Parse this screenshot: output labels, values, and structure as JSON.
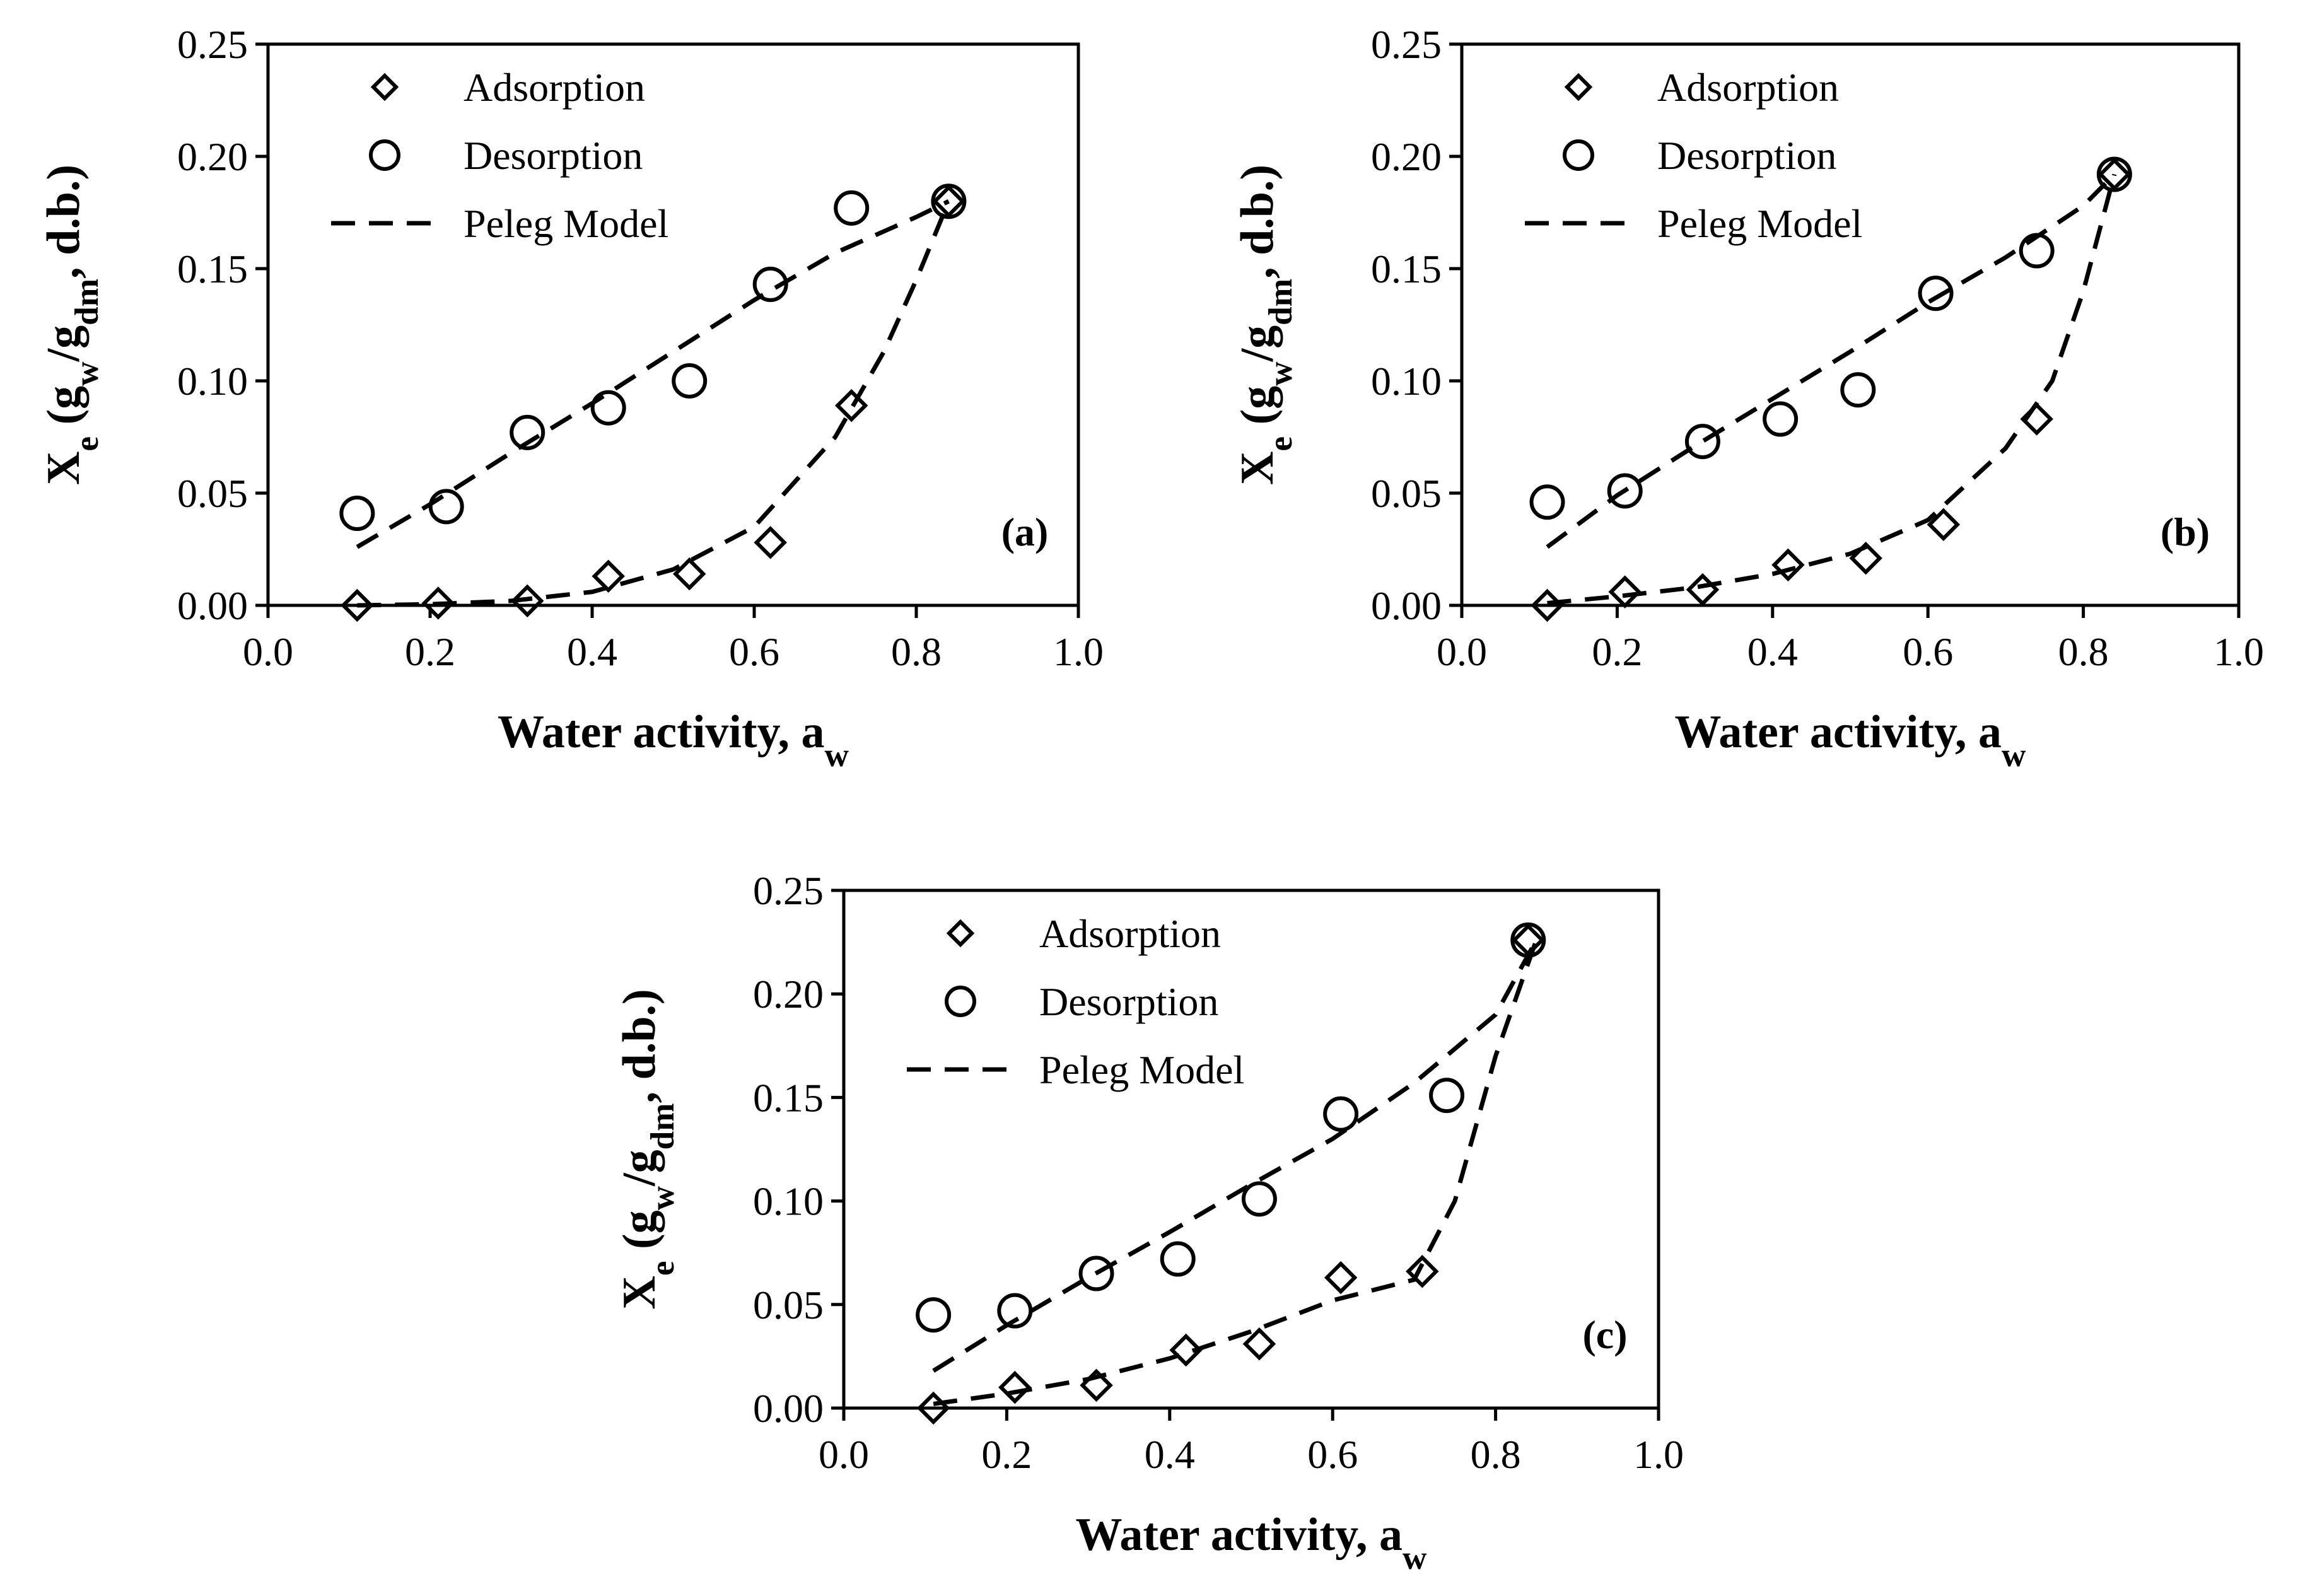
{
  "chart_data": [
    {
      "type": "scatter",
      "panel_label": "(a)",
      "xlabel": "Water activity, a",
      "xlabel_sub": "w",
      "ylabel_parts": [
        "X",
        "e",
        " (g",
        "w",
        "/g",
        "dm",
        ", d.b.)"
      ],
      "xlim": [
        0.0,
        1.0
      ],
      "ylim": [
        0.0,
        0.25
      ],
      "xticks": [
        "0.0",
        "0.2",
        "0.4",
        "0.6",
        "0.8",
        "1.0"
      ],
      "yticks": [
        "0.00",
        "0.05",
        "0.10",
        "0.15",
        "0.20",
        "0.25"
      ],
      "legend": [
        "Adsorption",
        "Desorption",
        "Peleg Model"
      ],
      "series": [
        {
          "name": "Adsorption",
          "marker": "diamond",
          "x": [
            0.11,
            0.21,
            0.32,
            0.42,
            0.52,
            0.62,
            0.72,
            0.84
          ],
          "y": [
            0.0,
            0.001,
            0.002,
            0.013,
            0.014,
            0.028,
            0.089,
            0.18
          ]
        },
        {
          "name": "Desorption",
          "marker": "circle",
          "x": [
            0.11,
            0.22,
            0.32,
            0.42,
            0.52,
            0.62,
            0.72,
            0.84
          ],
          "y": [
            0.041,
            0.044,
            0.077,
            0.088,
            0.1,
            0.143,
            0.177,
            0.18
          ]
        },
        {
          "name": "Peleg Model (Adsorption)",
          "style": "dashed",
          "x": [
            0.11,
            0.2,
            0.3,
            0.4,
            0.5,
            0.6,
            0.7,
            0.76,
            0.8,
            0.84
          ],
          "y": [
            0.0,
            0.0005,
            0.002,
            0.006,
            0.016,
            0.035,
            0.075,
            0.113,
            0.145,
            0.18
          ]
        },
        {
          "name": "Peleg Model (Desorption)",
          "style": "dashed",
          "x": [
            0.11,
            0.2,
            0.3,
            0.4,
            0.5,
            0.6,
            0.7,
            0.8,
            0.84
          ],
          "y": [
            0.026,
            0.045,
            0.068,
            0.09,
            0.113,
            0.136,
            0.157,
            0.173,
            0.18
          ]
        }
      ]
    },
    {
      "type": "scatter",
      "panel_label": "(b)",
      "xlabel": "Water activity, a",
      "xlabel_sub": "w",
      "ylabel_parts": [
        "X",
        "e",
        " (g",
        "w",
        "/g",
        "dm",
        ", d.b.)"
      ],
      "xlim": [
        0.0,
        1.0
      ],
      "ylim": [
        0.0,
        0.25
      ],
      "xticks": [
        "0.0",
        "0.2",
        "0.4",
        "0.6",
        "0.8",
        "1.0"
      ],
      "yticks": [
        "0.00",
        "0.05",
        "0.10",
        "0.15",
        "0.20",
        "0.25"
      ],
      "legend": [
        "Adsorption",
        "Desorption",
        "Peleg Model"
      ],
      "series": [
        {
          "name": "Adsorption",
          "marker": "diamond",
          "x": [
            0.11,
            0.21,
            0.31,
            0.42,
            0.52,
            0.62,
            0.74,
            0.84
          ],
          "y": [
            0.0,
            0.006,
            0.007,
            0.018,
            0.021,
            0.036,
            0.083,
            0.192
          ]
        },
        {
          "name": "Desorption",
          "marker": "circle",
          "x": [
            0.11,
            0.21,
            0.31,
            0.41,
            0.51,
            0.61,
            0.74,
            0.84
          ],
          "y": [
            0.046,
            0.051,
            0.073,
            0.083,
            0.096,
            0.139,
            0.158,
            0.192
          ]
        },
        {
          "name": "Peleg Model (Adsorption)",
          "style": "dashed",
          "x": [
            0.11,
            0.2,
            0.3,
            0.4,
            0.5,
            0.6,
            0.7,
            0.76,
            0.8,
            0.84
          ],
          "y": [
            0.001,
            0.004,
            0.008,
            0.014,
            0.023,
            0.038,
            0.07,
            0.1,
            0.14,
            0.192
          ]
        },
        {
          "name": "Peleg Model (Desorption)",
          "style": "dashed",
          "x": [
            0.11,
            0.2,
            0.3,
            0.4,
            0.5,
            0.6,
            0.7,
            0.8,
            0.84
          ],
          "y": [
            0.026,
            0.049,
            0.071,
            0.092,
            0.113,
            0.135,
            0.155,
            0.178,
            0.192
          ]
        }
      ]
    },
    {
      "type": "scatter",
      "panel_label": "(c)",
      "xlabel": "Water activity, a",
      "xlabel_sub": "w",
      "ylabel_parts": [
        "X",
        "e",
        " (g",
        "w",
        "/g",
        "dm",
        ", d.b.)"
      ],
      "xlim": [
        0.0,
        1.0
      ],
      "ylim": [
        0.0,
        0.25
      ],
      "xticks": [
        "0.0",
        "0.2",
        "0.4",
        "0.6",
        "0.8",
        "1.0"
      ],
      "yticks": [
        "0.00",
        "0.05",
        "0.10",
        "0.15",
        "0.20",
        "0.25"
      ],
      "legend": [
        "Adsorption",
        "Desorption",
        "Peleg Model"
      ],
      "series": [
        {
          "name": "Adsorption",
          "marker": "diamond",
          "x": [
            0.11,
            0.21,
            0.31,
            0.42,
            0.51,
            0.61,
            0.71,
            0.84
          ],
          "y": [
            0.0,
            0.01,
            0.011,
            0.028,
            0.031,
            0.063,
            0.066,
            0.226
          ]
        },
        {
          "name": "Desorption",
          "marker": "circle",
          "x": [
            0.11,
            0.21,
            0.31,
            0.41,
            0.51,
            0.61,
            0.74,
            0.84
          ],
          "y": [
            0.045,
            0.047,
            0.065,
            0.072,
            0.101,
            0.142,
            0.151,
            0.226
          ]
        },
        {
          "name": "Peleg Model (Adsorption)",
          "style": "dashed",
          "x": [
            0.11,
            0.2,
            0.3,
            0.4,
            0.5,
            0.6,
            0.7,
            0.75,
            0.8,
            0.85
          ],
          "y": [
            0.002,
            0.007,
            0.014,
            0.024,
            0.037,
            0.052,
            0.062,
            0.1,
            0.17,
            0.226
          ]
        },
        {
          "name": "Peleg Model (Desorption)",
          "style": "dashed",
          "x": [
            0.11,
            0.2,
            0.3,
            0.4,
            0.5,
            0.6,
            0.7,
            0.8,
            0.85
          ],
          "y": [
            0.018,
            0.04,
            0.063,
            0.085,
            0.108,
            0.13,
            0.157,
            0.19,
            0.226
          ]
        }
      ]
    }
  ]
}
